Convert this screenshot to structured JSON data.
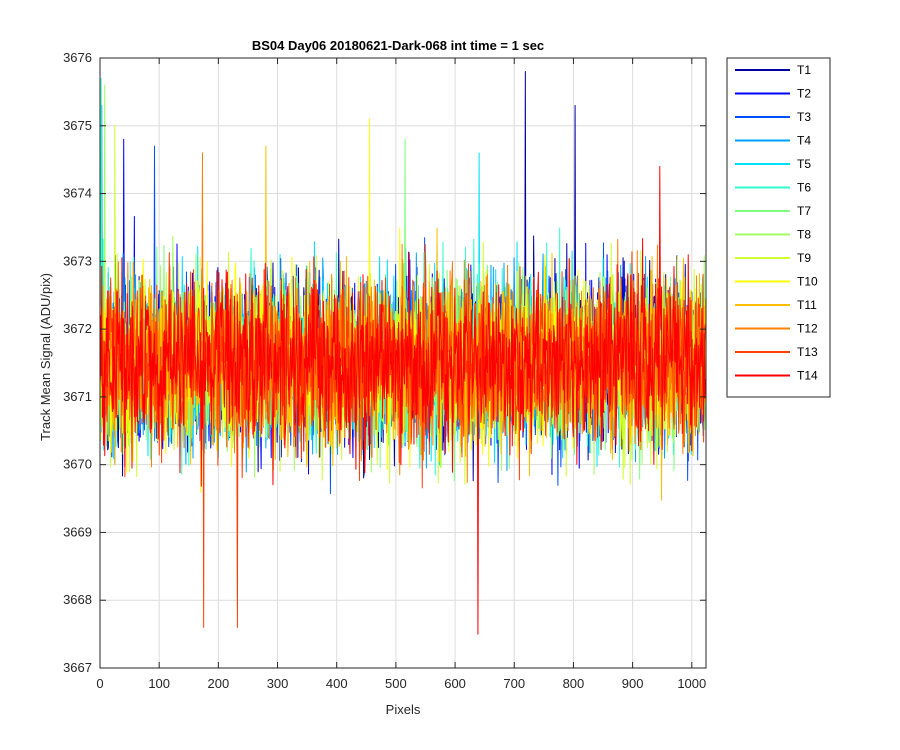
{
  "chart_data": {
    "type": "line",
    "title": "BS04 Day06 20180621-Dark-068 int time = 1 sec",
    "xlabel": "Pixels",
    "ylabel": "Track Mean Signal (ADU/pix)",
    "xlim": [
      0,
      1024
    ],
    "ylim": [
      3667,
      3676
    ],
    "xticks": [
      0,
      100,
      200,
      300,
      400,
      500,
      600,
      700,
      800,
      900,
      1000
    ],
    "yticks": [
      3667,
      3668,
      3669,
      3670,
      3671,
      3672,
      3673,
      3674,
      3675,
      3676
    ],
    "grid": true,
    "legend_position": "outside-top-right",
    "n_points": 1024,
    "noise_center": 3671.5,
    "noise_spread": 1.1,
    "series": [
      {
        "name": "T1",
        "color": "#00009f",
        "peaks": [
          [
            718,
            3675.8
          ],
          [
            802,
            3675.3
          ]
        ]
      },
      {
        "name": "T2",
        "color": "#0000ff",
        "peaks": [
          [
            40,
            3674.8
          ]
        ]
      },
      {
        "name": "T3",
        "color": "#0050ff",
        "peaks": [
          [
            92,
            3674.7
          ]
        ]
      },
      {
        "name": "T4",
        "color": "#00a0ff",
        "peaks": [
          [
            3,
            3675.3
          ]
        ]
      },
      {
        "name": "T5",
        "color": "#00e0ff",
        "peaks": [
          [
            640,
            3674.6
          ]
        ]
      },
      {
        "name": "T6",
        "color": "#2fffcf",
        "peaks": [
          [
            2,
            3675.7
          ]
        ]
      },
      {
        "name": "T7",
        "color": "#7fff7f",
        "peaks": [
          [
            515,
            3674.8
          ]
        ]
      },
      {
        "name": "T8",
        "color": "#9fff5f",
        "peaks": [
          [
            8,
            3675.6
          ]
        ]
      },
      {
        "name": "T9",
        "color": "#cfff2f",
        "peaks": [
          [
            25,
            3675.0
          ]
        ]
      },
      {
        "name": "T10",
        "color": "#ffff00",
        "peaks": [
          [
            455,
            3675.1
          ]
        ]
      },
      {
        "name": "T11",
        "color": "#ffbf00",
        "peaks": [
          [
            280,
            3674.7
          ]
        ]
      },
      {
        "name": "T12",
        "color": "#ff7f00",
        "peaks": [
          [
            173,
            3674.6
          ]
        ]
      },
      {
        "name": "T13",
        "color": "#ff3f00",
        "peaks": [
          [
            232,
            3667.6
          ],
          [
            175,
            3667.6
          ]
        ]
      },
      {
        "name": "T14",
        "color": "#ff0000",
        "peaks": [
          [
            638,
            3667.5
          ],
          [
            945,
            3674.4
          ]
        ]
      }
    ]
  }
}
